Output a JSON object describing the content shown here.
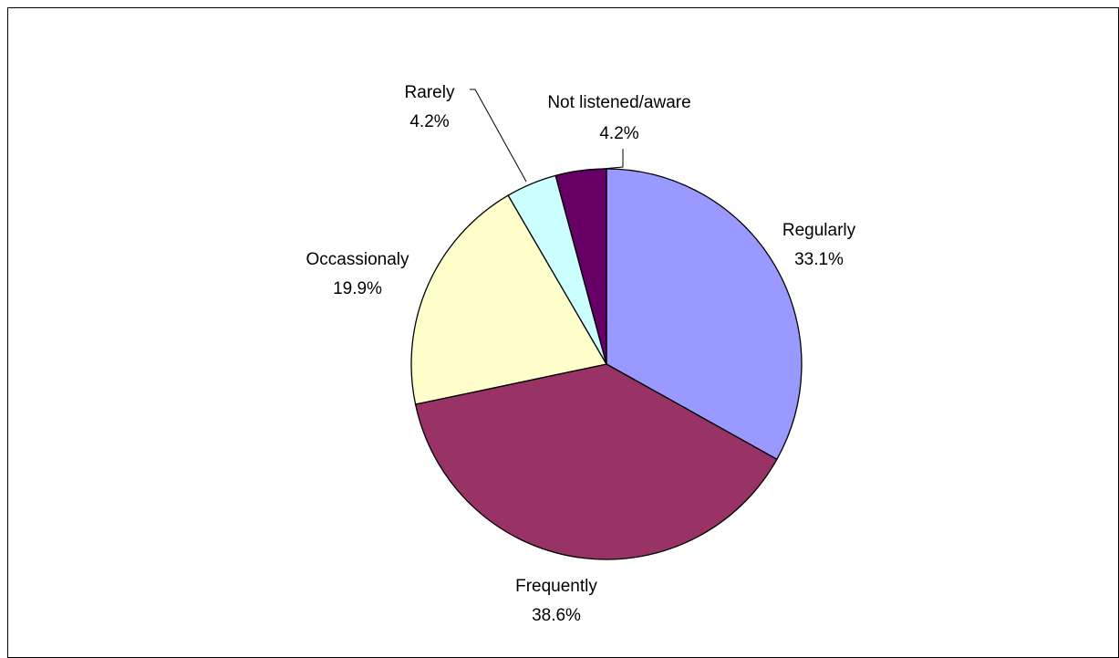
{
  "chart_data": {
    "type": "pie",
    "title": "",
    "slices": [
      {
        "label": "Regularly",
        "value": 33.1,
        "value_label": "33.1%",
        "color": "#9999FF"
      },
      {
        "label": "Frequently",
        "value": 38.6,
        "value_label": "38.6%",
        "color": "#993366"
      },
      {
        "label": "Occassionaly",
        "value": 19.9,
        "value_label": "19.9%",
        "color": "#FFFFCC"
      },
      {
        "label": "Rarely",
        "value": 4.2,
        "value_label": "4.2%",
        "color": "#CCFFFF"
      },
      {
        "label": "Not listened/aware",
        "value": 4.2,
        "value_label": "4.2%",
        "color": "#660066"
      }
    ],
    "start_angle": "12 o'clock",
    "direction": "clockwise",
    "legend": "none",
    "data_labels": "category name and percentage"
  }
}
